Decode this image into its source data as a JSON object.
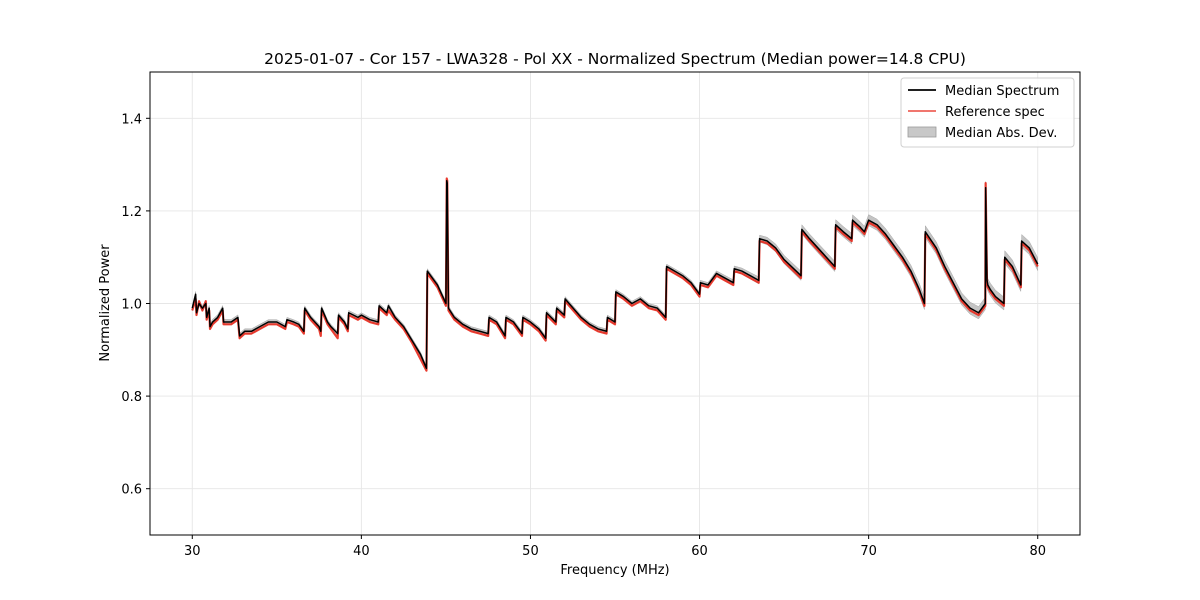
{
  "chart_data": {
    "type": "line",
    "title": "2025-01-07 - Cor 157 - LWA328 - Pol XX - Normalized Spectrum (Median power=14.8 CPU)",
    "xlabel": "Frequency (MHz)",
    "ylabel": "Normalized Power",
    "xlim": [
      27.5,
      82.5
    ],
    "ylim": [
      0.5,
      1.5
    ],
    "xticks": [
      30,
      40,
      50,
      60,
      70,
      80
    ],
    "yticks": [
      0.6,
      0.8,
      1.0,
      1.2,
      1.4
    ],
    "xtick_labels": [
      "30",
      "40",
      "50",
      "60",
      "70",
      "80"
    ],
    "ytick_labels": [
      "0.6",
      "0.8",
      "1.0",
      "1.2",
      "1.4"
    ],
    "grid": true,
    "legend_position": "top-right",
    "legend": [
      "Median Spectrum",
      "Reference spec",
      "Median Abs. Dev."
    ],
    "colors": {
      "median": "#000000",
      "reference": "#e8291c",
      "mad": "#b0b0b0"
    },
    "series": [
      {
        "name": "Median Spectrum",
        "x": [
          30.0,
          30.2,
          30.25,
          30.4,
          30.6,
          30.8,
          30.85,
          31.0,
          31.05,
          31.2,
          31.5,
          31.8,
          31.85,
          32.0,
          32.3,
          32.7,
          32.8,
          33.1,
          33.5,
          34.0,
          34.5,
          35.0,
          35.5,
          35.6,
          36.0,
          36.3,
          36.6,
          36.65,
          37.0,
          37.5,
          37.6,
          37.65,
          38.0,
          38.2,
          38.6,
          38.65,
          39.0,
          39.2,
          39.25,
          39.8,
          40.0,
          40.5,
          41.0,
          41.05,
          41.5,
          41.6,
          42.0,
          42.5,
          43.0,
          43.5,
          43.85,
          43.9,
          44.5,
          45.0,
          45.05,
          45.08,
          45.15,
          45.5,
          46.0,
          46.5,
          47.0,
          47.5,
          47.55,
          48.0,
          48.5,
          48.55,
          49.0,
          49.5,
          49.55,
          50.0,
          50.5,
          50.9,
          50.95,
          51.5,
          51.55,
          52.0,
          52.05,
          53.0,
          53.5,
          54.0,
          54.5,
          54.55,
          55.0,
          55.05,
          55.5,
          56.0,
          56.5,
          57.0,
          57.5,
          58.0,
          58.05,
          59.0,
          59.5,
          60.0,
          60.05,
          60.5,
          61.0,
          61.5,
          62.0,
          62.05,
          62.5,
          63.0,
          63.5,
          63.55,
          64.0,
          64.5,
          65.0,
          66.0,
          66.05,
          66.5,
          67.0,
          67.5,
          68.0,
          68.05,
          68.5,
          69.0,
          69.05,
          69.5,
          69.75,
          70.0,
          70.5,
          71.0,
          71.5,
          72.0,
          72.5,
          73.0,
          73.3,
          73.35,
          74.0,
          74.5,
          75.0,
          75.5,
          76.0,
          76.5,
          76.9,
          76.92,
          77.0,
          77.05,
          77.2,
          77.5,
          78.0,
          78.05,
          78.5,
          79.0,
          79.05,
          79.5,
          80.0
        ],
        "y": [
          0.99,
          1.02,
          0.98,
          1.0,
          0.99,
          1.0,
          0.97,
          0.99,
          0.95,
          0.96,
          0.97,
          0.99,
          0.96,
          0.96,
          0.96,
          0.97,
          0.93,
          0.94,
          0.94,
          0.95,
          0.96,
          0.96,
          0.95,
          0.965,
          0.96,
          0.955,
          0.94,
          0.99,
          0.97,
          0.95,
          0.94,
          0.99,
          0.96,
          0.95,
          0.935,
          0.975,
          0.96,
          0.945,
          0.98,
          0.97,
          0.975,
          0.965,
          0.96,
          0.995,
          0.98,
          0.995,
          0.97,
          0.95,
          0.92,
          0.89,
          0.86,
          1.07,
          1.04,
          1.0,
          1.265,
          1.26,
          0.99,
          0.97,
          0.955,
          0.945,
          0.94,
          0.935,
          0.97,
          0.96,
          0.93,
          0.97,
          0.96,
          0.935,
          0.97,
          0.96,
          0.945,
          0.925,
          0.98,
          0.96,
          0.99,
          0.975,
          1.01,
          0.97,
          0.955,
          0.945,
          0.94,
          0.97,
          0.96,
          1.025,
          1.015,
          1.0,
          1.01,
          0.995,
          0.99,
          0.97,
          1.08,
          1.06,
          1.045,
          1.02,
          1.045,
          1.04,
          1.065,
          1.055,
          1.045,
          1.075,
          1.07,
          1.06,
          1.05,
          1.14,
          1.135,
          1.12,
          1.095,
          1.06,
          1.16,
          1.14,
          1.12,
          1.1,
          1.08,
          1.17,
          1.155,
          1.14,
          1.18,
          1.165,
          1.155,
          1.18,
          1.17,
          1.15,
          1.125,
          1.1,
          1.07,
          1.03,
          1.0,
          1.155,
          1.12,
          1.08,
          1.045,
          1.01,
          0.99,
          0.98,
          1.0,
          1.25,
          1.05,
          1.04,
          1.03,
          1.015,
          1.0,
          1.1,
          1.08,
          1.04,
          1.135,
          1.12,
          1.085
        ]
      },
      {
        "name": "Reference spec",
        "x": [
          30.0,
          30.2,
          30.25,
          30.4,
          30.6,
          30.8,
          30.85,
          31.0,
          31.05,
          31.2,
          31.5,
          31.8,
          31.85,
          32.0,
          32.3,
          32.7,
          32.8,
          33.1,
          33.5,
          34.0,
          34.5,
          35.0,
          35.5,
          35.6,
          36.0,
          36.3,
          36.6,
          36.65,
          37.0,
          37.5,
          37.6,
          37.65,
          38.0,
          38.2,
          38.6,
          38.65,
          39.0,
          39.2,
          39.25,
          39.8,
          40.0,
          40.5,
          41.0,
          41.05,
          41.5,
          41.6,
          42.0,
          42.5,
          43.0,
          43.5,
          43.85,
          43.9,
          44.5,
          45.0,
          45.05,
          45.08,
          45.15,
          45.5,
          46.0,
          46.5,
          47.0,
          47.5,
          47.55,
          48.0,
          48.5,
          48.55,
          49.0,
          49.5,
          49.55,
          50.0,
          50.5,
          50.9,
          50.95,
          51.5,
          51.55,
          52.0,
          52.05,
          53.0,
          53.5,
          54.0,
          54.5,
          54.55,
          55.0,
          55.05,
          55.5,
          56.0,
          56.5,
          57.0,
          57.5,
          58.0,
          58.05,
          59.0,
          59.5,
          60.0,
          60.05,
          60.5,
          61.0,
          61.5,
          62.0,
          62.05,
          62.5,
          63.0,
          63.5,
          63.55,
          64.0,
          64.5,
          65.0,
          66.0,
          66.05,
          66.5,
          67.0,
          67.5,
          68.0,
          68.05,
          68.5,
          69.0,
          69.05,
          69.5,
          69.75,
          70.0,
          70.5,
          71.0,
          71.5,
          72.0,
          72.5,
          73.0,
          73.3,
          73.35,
          74.0,
          74.5,
          75.0,
          75.5,
          76.0,
          76.5,
          76.9,
          76.92,
          77.0,
          77.05,
          77.2,
          77.5,
          78.0,
          78.05,
          78.5,
          79.0,
          79.05,
          79.5,
          80.0
        ],
        "y": [
          0.985,
          1.01,
          0.975,
          1.005,
          0.985,
          1.005,
          0.965,
          0.985,
          0.945,
          0.955,
          0.965,
          0.985,
          0.955,
          0.955,
          0.955,
          0.965,
          0.925,
          0.935,
          0.935,
          0.945,
          0.955,
          0.955,
          0.945,
          0.96,
          0.955,
          0.95,
          0.935,
          0.985,
          0.965,
          0.945,
          0.93,
          0.985,
          0.955,
          0.945,
          0.925,
          0.97,
          0.955,
          0.94,
          0.975,
          0.965,
          0.97,
          0.96,
          0.955,
          0.99,
          0.975,
          0.985,
          0.965,
          0.945,
          0.915,
          0.88,
          0.855,
          1.065,
          1.035,
          0.995,
          1.27,
          1.265,
          0.985,
          0.965,
          0.95,
          0.94,
          0.935,
          0.93,
          0.965,
          0.955,
          0.925,
          0.965,
          0.955,
          0.93,
          0.965,
          0.955,
          0.94,
          0.92,
          0.975,
          0.955,
          0.985,
          0.97,
          1.005,
          0.965,
          0.95,
          0.94,
          0.935,
          0.965,
          0.955,
          1.02,
          1.01,
          0.995,
          1.005,
          0.99,
          0.985,
          0.965,
          1.075,
          1.055,
          1.04,
          1.015,
          1.04,
          1.035,
          1.06,
          1.05,
          1.04,
          1.07,
          1.065,
          1.055,
          1.045,
          1.135,
          1.13,
          1.115,
          1.09,
          1.055,
          1.155,
          1.135,
          1.115,
          1.095,
          1.075,
          1.165,
          1.15,
          1.135,
          1.175,
          1.16,
          1.15,
          1.175,
          1.165,
          1.145,
          1.12,
          1.095,
          1.065,
          1.025,
          0.995,
          1.15,
          1.115,
          1.075,
          1.04,
          1.005,
          0.985,
          0.975,
          0.995,
          1.26,
          1.045,
          1.035,
          1.025,
          1.01,
          0.995,
          1.095,
          1.075,
          1.035,
          1.13,
          1.115,
          1.08
        ]
      },
      {
        "name": "Median Abs. Dev.",
        "x": [
          30.0,
          35.0,
          40.0,
          45.0,
          50.0,
          55.0,
          60.0,
          62.0,
          64.0,
          66.0,
          68.0,
          70.0,
          72.0,
          73.0,
          74.0,
          76.0,
          78.0,
          80.0
        ],
        "halfwidth": [
          0.006,
          0.005,
          0.005,
          0.005,
          0.005,
          0.005,
          0.005,
          0.006,
          0.008,
          0.01,
          0.011,
          0.012,
          0.012,
          0.013,
          0.013,
          0.013,
          0.014,
          0.014
        ]
      }
    ]
  }
}
